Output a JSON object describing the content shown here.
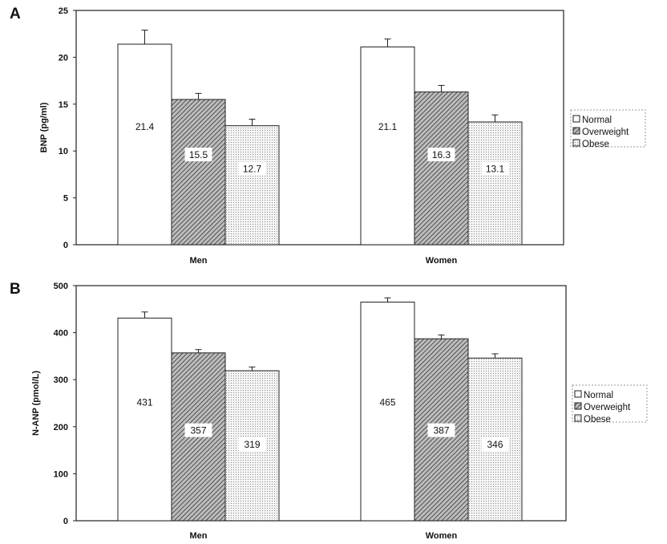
{
  "chart_data": [
    {
      "type": "bar",
      "panel_label": "A",
      "title": "",
      "xlabel": "",
      "ylabel": "BNP (pg/ml)",
      "ylim": [
        0,
        25
      ],
      "yticks": [
        "0",
        "5",
        "10",
        "15",
        "20",
        "25"
      ],
      "categories": [
        "Men",
        "Women"
      ],
      "series": [
        {
          "name": "Normal",
          "values": [
            21.4,
            21.1
          ],
          "labels": [
            "21.4",
            "21.1"
          ],
          "errors": [
            1.5,
            0.85
          ]
        },
        {
          "name": "Overweight",
          "values": [
            15.5,
            16.3
          ],
          "labels": [
            "15.5",
            "16.3"
          ],
          "errors": [
            0.65,
            0.7
          ]
        },
        {
          "name": "Obese",
          "values": [
            12.7,
            13.1
          ],
          "labels": [
            "12.7",
            "13.1"
          ],
          "errors": [
            0.7,
            0.75
          ]
        }
      ],
      "legend": "right"
    },
    {
      "type": "bar",
      "panel_label": "B",
      "title": "",
      "xlabel": "",
      "ylabel": "N-ANP (pmol/L)",
      "ylim": [
        0,
        500
      ],
      "yticks": [
        "0",
        "100",
        "200",
        "300",
        "400",
        "500"
      ],
      "categories": [
        "Men",
        "Women"
      ],
      "series": [
        {
          "name": "Normal",
          "values": [
            431,
            465
          ],
          "labels": [
            "431",
            "465"
          ],
          "errors": [
            13,
            9
          ]
        },
        {
          "name": "Overweight",
          "values": [
            357,
            387
          ],
          "labels": [
            "357",
            "387"
          ],
          "errors": [
            7,
            8
          ]
        },
        {
          "name": "Obese",
          "values": [
            319,
            346
          ],
          "labels": [
            "319",
            "346"
          ],
          "errors": [
            8,
            9
          ]
        }
      ],
      "legend": "right"
    }
  ]
}
